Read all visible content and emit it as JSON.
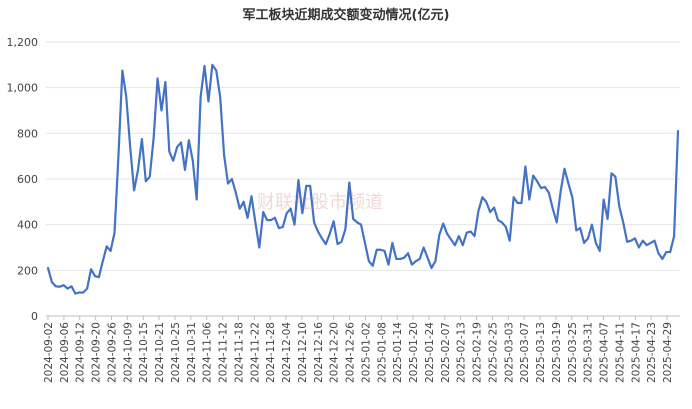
{
  "chart_data": {
    "type": "line",
    "title": "军工板块近期成交额变动情况(亿元)",
    "xlabel": "",
    "ylabel": "",
    "ylim": [
      0,
      1200
    ],
    "yticks": [
      0,
      200,
      400,
      600,
      800,
      1000,
      1200
    ],
    "ytick_labels": [
      "0",
      "200",
      "400",
      "600",
      "800",
      "1,000",
      "1,200"
    ],
    "grid": true,
    "legend": "none",
    "line_color": "#4472c4",
    "watermark": "财联社股市频道",
    "x_tick_labels": [
      "2024-09-02",
      "2024-09-06",
      "2024-09-12",
      "2024-09-20",
      "2024-09-26",
      "2024-10-09",
      "2024-10-15",
      "2024-10-21",
      "2024-10-25",
      "2024-10-31",
      "2024-11-06",
      "2024-11-12",
      "2024-11-18",
      "2024-11-22",
      "2024-11-28",
      "2024-12-04",
      "2024-12-10",
      "2024-12-16",
      "2024-12-20",
      "2024-12-26",
      "2025-01-02",
      "2025-01-08",
      "2025-01-14",
      "2025-01-20",
      "2025-01-24",
      "2025-02-07",
      "2025-02-13",
      "2025-02-19",
      "2025-02-25",
      "2025-03-03",
      "2025-03-07",
      "2025-03-13",
      "2025-03-19",
      "2025-03-25",
      "2025-03-31",
      "2025-04-07",
      "2025-04-11",
      "2025-04-17",
      "2025-04-23",
      "2025-04-29"
    ],
    "series": [
      {
        "values": [
          210,
          148,
          130,
          128,
          135,
          120,
          130,
          98,
          103,
          103,
          120,
          205,
          175,
          170,
          240,
          305,
          285,
          365,
          700,
          1075,
          960,
          740,
          550,
          640,
          775,
          590,
          610,
          780,
          1040,
          900,
          1025,
          720,
          680,
          740,
          760,
          640,
          770,
          680,
          510,
          960,
          1095,
          940,
          1100,
          1075,
          960,
          705,
          580,
          600,
          540,
          470,
          500,
          430,
          525,
          410,
          300,
          455,
          420,
          420,
          430,
          385,
          390,
          450,
          470,
          400,
          595,
          450,
          570,
          570,
          410,
          370,
          340,
          315,
          360,
          415,
          315,
          325,
          380,
          585,
          425,
          410,
          400,
          320,
          240,
          220,
          290,
          290,
          285,
          225,
          320,
          250,
          250,
          255,
          275,
          225,
          240,
          250,
          300,
          255,
          210,
          240,
          355,
          405,
          360,
          335,
          310,
          350,
          310,
          365,
          370,
          350,
          460,
          520,
          500,
          455,
          475,
          420,
          410,
          390,
          330,
          520,
          495,
          495,
          655,
          510,
          615,
          590,
          560,
          565,
          540,
          470,
          410,
          545,
          645,
          580,
          520,
          375,
          385,
          320,
          340,
          400,
          320,
          285,
          510,
          425,
          625,
          610,
          480,
          410,
          325,
          330,
          340,
          300,
          330,
          310,
          320,
          330,
          275,
          250,
          280,
          280,
          350,
          810
        ]
      }
    ]
  }
}
